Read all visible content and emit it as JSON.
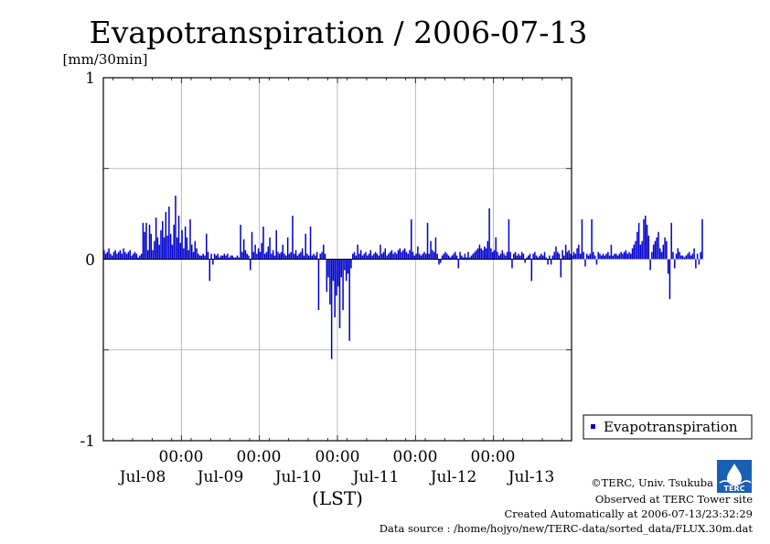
{
  "chart_data": {
    "type": "bar",
    "title": "Evapotranspiration / 2006-07-13",
    "ylabel": "[mm/30min]",
    "xlabel": "(LST)",
    "ylim": [
      -1,
      1
    ],
    "y_ticks": [
      "1",
      "0",
      "-1"
    ],
    "x_time_ticks": [
      "00:00",
      "00:00",
      "00:00",
      "00:00",
      "00:00"
    ],
    "x_date_labels": [
      "Jul-08",
      "Jul-09",
      "Jul-10",
      "Jul-11",
      "Jul-12",
      "Jul-13"
    ],
    "grid": true,
    "legend_position": "bottom-right",
    "series": [
      {
        "name": "Evapotranspiration",
        "color": "#0000cc",
        "x_start": "2006-07-08 00:00",
        "interval_minutes": 30,
        "values": [
          0.05,
          0.03,
          0.04,
          0.06,
          0.03,
          0.02,
          0.04,
          0.05,
          0.03,
          0.04,
          0.05,
          0.03,
          0.06,
          0.04,
          0.03,
          0.04,
          0.05,
          0.02,
          0.03,
          0.04,
          0.03,
          0.01,
          0.02,
          0.03,
          0.2,
          0.15,
          0.2,
          0.05,
          0.19,
          0.14,
          0.05,
          0.1,
          0.23,
          0.12,
          0.08,
          0.16,
          0.21,
          0.12,
          0.26,
          0.13,
          0.29,
          0.14,
          0.08,
          0.19,
          0.35,
          0.12,
          0.24,
          0.09,
          0.16,
          0.06,
          0.18,
          0.12,
          0.05,
          0.22,
          0.08,
          0.04,
          0.1,
          0.06,
          0.03,
          0.02,
          0.02,
          0.03,
          0.02,
          0.14,
          0.04,
          -0.12,
          0.03,
          -0.03,
          0.03,
          0.02,
          0.03,
          0.01,
          0.02,
          0.02,
          0.03,
          0.02,
          0.03,
          0.01,
          0.02,
          0.02,
          0.01,
          0.01,
          0.02,
          0.01,
          0.19,
          0.04,
          0.11,
          0.05,
          0.03,
          0.02,
          -0.06,
          0.15,
          0.04,
          0.08,
          0.03,
          0.06,
          0.04,
          0.09,
          0.18,
          0.03,
          0.04,
          0.07,
          0.12,
          0.03,
          0.05,
          0.02,
          0.16,
          0.04,
          0.03,
          0.04,
          0.08,
          0.03,
          0.02,
          0.12,
          0.03,
          0.04,
          0.24,
          0.03,
          0.05,
          0.02,
          0.03,
          0.04,
          0.06,
          0.02,
          0.14,
          0.03,
          0.02,
          0.18,
          0.02,
          0.03,
          0.02,
          0.04,
          -0.28,
          0.03,
          0.04,
          0.08,
          0.03,
          -0.18,
          -0.1,
          -0.25,
          -0.55,
          -0.12,
          -0.32,
          -0.2,
          -0.15,
          -0.38,
          -0.1,
          -0.28,
          -0.06,
          -0.12,
          -0.08,
          -0.45,
          -0.05,
          0.03,
          0.04,
          0.02,
          0.08,
          0.03,
          0.05,
          0.02,
          0.03,
          0.04,
          0.02,
          0.03,
          0.05,
          0.02,
          0.03,
          0.04,
          0.03,
          0.02,
          0.08,
          0.03,
          0.04,
          0.06,
          0.02,
          0.03,
          0.04,
          0.05,
          0.03,
          0.04,
          0.03,
          0.05,
          0.06,
          0.04,
          0.05,
          0.06,
          0.04,
          0.03,
          0.05,
          0.22,
          0.04,
          0.02,
          0.03,
          0.07,
          0.03,
          0.02,
          0.03,
          0.04,
          0.03,
          0.2,
          0.03,
          0.1,
          0.05,
          0.04,
          0.12,
          0.03,
          -0.03,
          -0.02,
          0.02,
          0.03,
          0.04,
          0.03,
          0.02,
          0.01,
          0.02,
          0.03,
          0.04,
          0.02,
          -0.05,
          0.04,
          0.02,
          0.01,
          0.03,
          0.01,
          0.04,
          0.01,
          0.02,
          0.03,
          0.04,
          0.05,
          0.06,
          0.08,
          0.06,
          0.05,
          0.07,
          0.06,
          0.1,
          0.28,
          0.06,
          0.04,
          0.05,
          0.12,
          0.04,
          0.02,
          0.03,
          0.05,
          0.03,
          0.02,
          0.04,
          0.22,
          0.04,
          -0.05,
          0.03,
          0.04,
          0.02,
          0.03,
          0.02,
          0.04,
          0.03,
          -0.02,
          0.01,
          0.02,
          0.03,
          -0.12,
          0.03,
          0.04,
          0.02,
          0.01,
          0.02,
          0.03,
          0.02,
          0.04,
          0.01,
          -0.03,
          0.02,
          -0.03,
          0.02,
          0.04,
          0.07,
          0.04,
          0.03,
          -0.1,
          0.05,
          0.02,
          0.08,
          0.04,
          0.05,
          0.03,
          0.02,
          0.04,
          0.03,
          0.06,
          0.08,
          0.03,
          0.22,
          0.04,
          -0.04,
          0.03,
          0.02,
          0.03,
          0.22,
          0.04,
          0.02,
          -0.03,
          0.04,
          0.03,
          0.02,
          0.03,
          0.02,
          0.03,
          0.04,
          0.02,
          0.08,
          0.02,
          0.03,
          0.03,
          0.02,
          0.03,
          0.04,
          0.03,
          0.04,
          0.05,
          0.03,
          0.04,
          0.03,
          0.06,
          0.08,
          0.1,
          0.15,
          0.2,
          0.08,
          0.1,
          0.22,
          0.24,
          0.19,
          0.13,
          -0.06,
          0.04,
          0.08,
          0.1,
          0.12,
          0.15,
          0.06,
          0.04,
          0.08,
          0.12,
          0.1,
          -0.08,
          -0.22,
          0.2,
          0.04,
          -0.05,
          0.03,
          0.06,
          0.04,
          0.02,
          0.02,
          0.01,
          0.02,
          0.03,
          0.04,
          0.02,
          0.03,
          0.06,
          -0.05,
          0.03,
          -0.03,
          0.04,
          0.22
        ]
      }
    ]
  },
  "credits": {
    "copyright": "©TERC, Univ. Tsukuba",
    "observed": "Observed at TERC Tower site",
    "created": "Created Automatically at 2006-07-13/23:32:29",
    "source": "Data source : /home/hojyo/new/TERC-data/sorted_data/FLUX.30m.dat"
  },
  "logo": {
    "name": "terc-logo",
    "text": "TERC"
  }
}
